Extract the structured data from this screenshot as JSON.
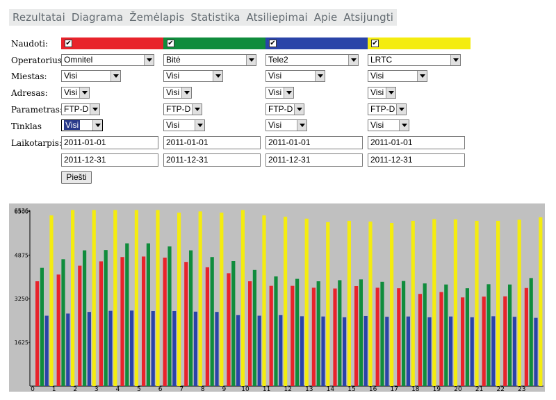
{
  "nav": [
    "Rezultatai",
    "Diagrama",
    "Žemėlapis",
    "Statistika",
    "Atsiliepimai",
    "Apie",
    "Atsijungti"
  ],
  "form": {
    "labels": {
      "use": "Naudoti:",
      "operator": "Operatorius:",
      "city": "Miestas:",
      "address": "Adresas:",
      "parameter": "Parametras:",
      "network": "Tinklas",
      "period": "Laikotarpis:"
    },
    "columns": [
      {
        "color": "#e8232b",
        "checked": "✔",
        "operator": "Omnitel",
        "city": "Visi",
        "address": "Visi",
        "parameter": "FTP-D",
        "network": "Visi",
        "from": "2011-01-01",
        "to": "2011-12-31"
      },
      {
        "color": "#108c3c",
        "checked": "✔",
        "operator": "Bitė",
        "city": "Visi",
        "address": "Visi",
        "parameter": "FTP-D",
        "network": "Visi",
        "from": "2011-01-01",
        "to": "2011-12-31"
      },
      {
        "color": "#2a44a8",
        "checked": "✔",
        "operator": "Tele2",
        "city": "Visi",
        "address": "Visi",
        "parameter": "FTP-D",
        "network": "Visi",
        "from": "2011-01-01",
        "to": "2011-12-31"
      },
      {
        "color": "#f4ec10",
        "checked": "✔",
        "operator": "LRTC",
        "city": "Visi",
        "address": "Visi",
        "parameter": "FTP-D",
        "network": "Visi",
        "from": "2011-01-01",
        "to": "2011-12-31"
      }
    ],
    "draw_button": "Piešti"
  },
  "chart_data": {
    "type": "bar",
    "categories": [
      "0",
      "1",
      "2",
      "3",
      "4",
      "5",
      "6",
      "7",
      "8",
      "9",
      "10",
      "11",
      "12",
      "13",
      "14",
      "15",
      "16",
      "17",
      "18",
      "19",
      "20",
      "21",
      "22",
      "23"
    ],
    "y_ticks": [
      "1625",
      "3250",
      "4875",
      "6500",
      "6536"
    ],
    "ylim": [
      0,
      6536
    ],
    "background": "#c0c0c0",
    "series": [
      {
        "color": "#e8232b",
        "values": [
          3900,
          4150,
          4480,
          4640,
          4800,
          4820,
          4780,
          4620,
          4420,
          4200,
          3900,
          3730,
          3730,
          3660,
          3630,
          3720,
          3660,
          3640,
          3430,
          3500,
          3300,
          3330,
          3340,
          3650
        ]
      },
      {
        "color": "#108c3c",
        "values": [
          4400,
          4720,
          5050,
          5060,
          5310,
          5310,
          5200,
          5050,
          4800,
          4650,
          4320,
          4080,
          3990,
          3900,
          3940,
          3970,
          3880,
          3910,
          3820,
          3780,
          3640,
          3790,
          3780,
          4020
        ]
      },
      {
        "color": "#2a44a8",
        "values": [
          2620,
          2700,
          2760,
          2800,
          2810,
          2790,
          2790,
          2770,
          2760,
          2640,
          2620,
          2640,
          2600,
          2590,
          2560,
          2610,
          2580,
          2590,
          2560,
          2590,
          2560,
          2600,
          2580,
          2540
        ]
      },
      {
        "color": "#f4ec10",
        "values": [
          6350,
          6550,
          6550,
          6550,
          6550,
          6550,
          6450,
          6500,
          6450,
          6550,
          6350,
          6300,
          6230,
          6100,
          6150,
          6120,
          6070,
          6150,
          6210,
          6200,
          6150,
          6150,
          6190,
          6280
        ]
      }
    ]
  }
}
